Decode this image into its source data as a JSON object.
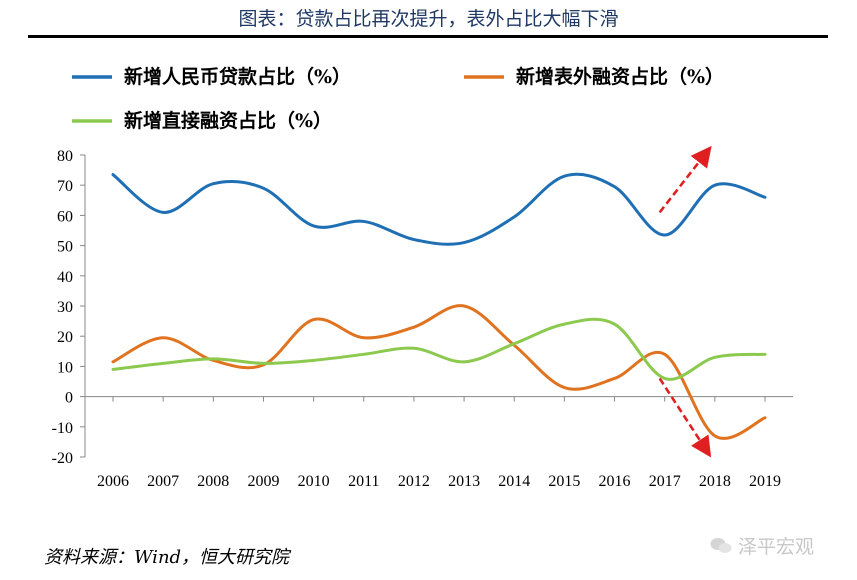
{
  "title": "图表：贷款占比再次提升，表外占比大幅下滑",
  "source": "资料来源：Wind，恒大研究院",
  "watermark": "泽平宏观",
  "chart_data": {
    "type": "line",
    "x": [
      "2006",
      "2007",
      "2008",
      "2009",
      "2010",
      "2011",
      "2012",
      "2013",
      "2014",
      "2015",
      "2016",
      "2017",
      "2018",
      "2019"
    ],
    "ylim": [
      -20,
      80
    ],
    "yticks": [
      -20,
      -10,
      0,
      10,
      20,
      30,
      40,
      50,
      60,
      70,
      80
    ],
    "legend_position": "top",
    "grid": false,
    "series": [
      {
        "name": "新增人民币贷款占比（%）",
        "color": "#1f6fb5",
        "values": [
          73.5,
          61,
          70.5,
          69,
          56.5,
          58,
          52,
          51,
          59.5,
          73,
          69.5,
          53.5,
          70,
          66
        ]
      },
      {
        "name": "新增表外融资占比（%）",
        "color": "#e07320",
        "values": [
          11.5,
          19.5,
          12,
          10.5,
          25.5,
          19.5,
          23,
          30,
          17,
          3,
          6,
          14,
          -13,
          -7
        ]
      },
      {
        "name": "新增直接融资占比（%）",
        "color": "#8cc94f",
        "values": [
          9,
          11,
          12.5,
          11,
          12,
          14,
          16,
          11.5,
          17.5,
          24,
          24,
          6,
          13,
          14
        ]
      }
    ],
    "annotations": [
      {
        "type": "arrow",
        "direction": "up",
        "color": "#e02020",
        "style": "dashed",
        "from_x": "2017",
        "to_x": "2018"
      },
      {
        "type": "arrow",
        "direction": "down",
        "color": "#e02020",
        "style": "dashed",
        "from_x": "2017",
        "to_x": "2018"
      }
    ]
  }
}
